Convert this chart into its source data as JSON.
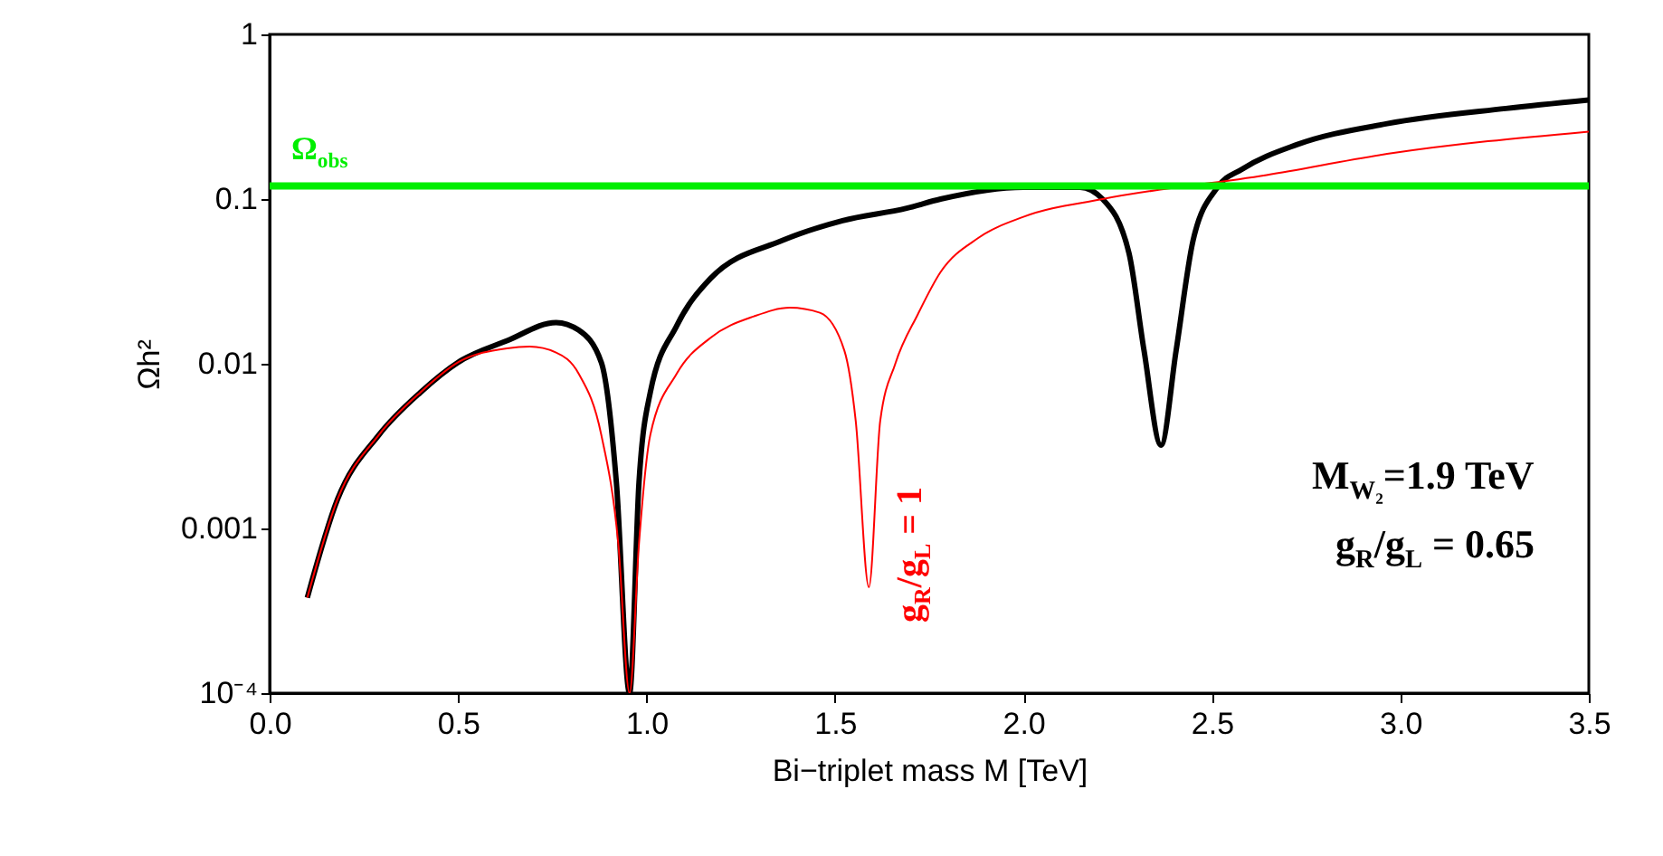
{
  "chart_data": {
    "type": "line",
    "xlabel": "Bi−triplet mass M [TeV]",
    "ylabel": "Ωh²",
    "log": "y",
    "xlim": [
      0,
      3.5
    ],
    "xticks": [
      {
        "value": 0,
        "label": "0.0"
      },
      0.5,
      {
        "value": 1,
        "label": "1.0"
      },
      1.5,
      {
        "value": 2,
        "label": "2.0"
      },
      2.5,
      {
        "value": 3,
        "label": "3.0"
      },
      3.5
    ],
    "ylim": [
      0.0001,
      1
    ],
    "yticks": [
      {
        "value": 0.0001,
        "label": "10⁻⁴"
      },
      0.001,
      0.01,
      0.1,
      1
    ],
    "grid": false,
    "series": [
      {
        "color": "#000000",
        "x": [
          0.1,
          0.18,
          0.29,
          0.4,
          0.5,
          0.63,
          0.76,
          0.82,
          0.88,
          0.92,
          0.955,
          0.98,
          1.01,
          1.08,
          1.17,
          1.36,
          1.52,
          1.69,
          1.78,
          2.0,
          2.15,
          2.21,
          2.28,
          2.32,
          2.365,
          2.405,
          2.45,
          2.515,
          2.58,
          2.725,
          2.965,
          3.28,
          3.5
        ],
        "values": [
          0.00038,
          0.0015,
          0.0037,
          0.0067,
          0.0102,
          0.0138,
          0.0178,
          0.016,
          0.0102,
          0.0019,
          0.0001,
          0.0019,
          0.0067,
          0.017,
          0.033,
          0.056,
          0.074,
          0.088,
          0.1,
          0.118,
          0.118,
          0.1,
          0.047,
          0.012,
          0.0032,
          0.012,
          0.056,
          0.118,
          0.152,
          0.214,
          0.287,
          0.355,
          0.4
        ]
      },
      {
        "name": "g$_{R}$/g$_{L}$ = 1",
        "color": "#ff0000",
        "x": [
          0.1,
          0.18,
          0.29,
          0.4,
          0.5,
          0.63,
          0.69,
          0.76,
          0.82,
          0.88,
          0.925,
          0.955,
          0.98,
          1.01,
          1.08,
          1.17,
          1.285,
          1.38,
          1.46,
          1.525,
          1.555,
          1.59,
          1.62,
          1.66,
          1.72,
          1.78,
          1.88,
          2.0,
          2.21,
          2.645,
          2.965,
          3.5
        ],
        "values": [
          0.00038,
          0.0015,
          0.0037,
          0.0067,
          0.0102,
          0.0124,
          0.0127,
          0.0117,
          0.0087,
          0.0037,
          0.00081,
          0.0001,
          0.00081,
          0.0037,
          0.0087,
          0.0144,
          0.0194,
          0.0219,
          0.0204,
          0.012,
          0.0045,
          0.00044,
          0.0045,
          0.01,
          0.02,
          0.036,
          0.058,
          0.078,
          0.1,
          0.14,
          0.188,
          0.257
        ]
      }
    ],
    "ref_lines": [
      {
        "axis": "y",
        "value": 0.12,
        "label": "Ω$_{obs}$",
        "color": "#00ee00"
      }
    ],
    "annotations": [
      "M$_{W₂}$=1.9 TeV",
      "g$_{R}$/g$_{L}$ = 0.65"
    ]
  }
}
